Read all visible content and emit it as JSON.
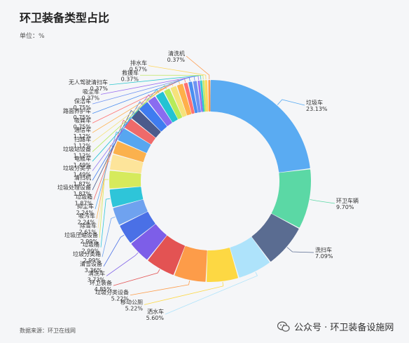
{
  "header": {
    "title": "环卫装备类型占比",
    "unit": "单位：%"
  },
  "footer": {
    "source": "数据来源：环卫在线网",
    "watermark": "公众号 · 环卫装备设施网"
  },
  "chart_data": {
    "type": "pie",
    "variant": "donut",
    "title": "环卫装备类型占比",
    "unit": "%",
    "legend": "none",
    "slices": [
      {
        "label": "垃圾车",
        "value": 23.13,
        "text": "23.13%",
        "color": "#5aabf2"
      },
      {
        "label": "环卫车辆",
        "value": 9.7,
        "text": "9.70%",
        "color": "#5bd8a5"
      },
      {
        "label": "洗扫车",
        "value": 7.09,
        "text": "7.09%",
        "color": "#5a6c91"
      },
      {
        "label": "洒水车",
        "value": 5.6,
        "text": "5.60%",
        "color": "#aee3fb"
      },
      {
        "label": "移动公厕",
        "value": 5.22,
        "text": "5.22%",
        "color": "#fdd843"
      },
      {
        "label": "垃圾分类设备",
        "value": 5.22,
        "text": "5.22%",
        "color": "#fd9c49"
      },
      {
        "label": "环卫装备",
        "value": 4.85,
        "text": "4.85%",
        "color": "#e35353"
      },
      {
        "label": "清洗车",
        "value": 3.73,
        "text": "3.73%",
        "color": "#7d5ee8"
      },
      {
        "label": "清雪设备",
        "value": 3.36,
        "text": "3.36%",
        "color": "#4a70e6"
      },
      {
        "label": "垃圾分类箱",
        "value": 2.99,
        "text": "2.99%",
        "color": "#6fa2ef"
      },
      {
        "label": "垃圾桶",
        "value": 2.99,
        "text": "2.99%",
        "color": "#2ec5d9"
      },
      {
        "label": "垃圾压缩设备",
        "value": 2.99,
        "text": "2.99%",
        "color": "#d6ea5c"
      },
      {
        "label": "除雪车",
        "value": 2.61,
        "text": "2.61%",
        "color": "#fde49a"
      },
      {
        "label": "吸污车",
        "value": 2.24,
        "text": "2.24%",
        "color": "#fbb14d"
      },
      {
        "label": "抑尘车",
        "value": 2.24,
        "text": "2.24%",
        "color": "#57a6f0"
      },
      {
        "label": "垃圾箱",
        "value": 1.87,
        "text": "1.87%",
        "color": "#ef6a6a"
      },
      {
        "label": "垃圾处理设备",
        "value": 1.87,
        "text": "1.87%",
        "color": "#4b5b8c"
      },
      {
        "label": "清扫机",
        "value": 1.87,
        "text": "1.87%",
        "color": "#3f7cf0"
      },
      {
        "label": "垃圾分类亭",
        "value": 1.49,
        "text": "1.49%",
        "color": "#8a6cf0"
      },
      {
        "label": "电瓶车",
        "value": 1.49,
        "text": "1.49%",
        "color": "#23c3d3"
      },
      {
        "label": "垃圾站设备",
        "value": 1.12,
        "text": "1.12%",
        "color": "#b6eb5a"
      },
      {
        "label": "扫路车",
        "value": 1.12,
        "text": "1.12%",
        "color": "#f6e27a"
      },
      {
        "label": "通信车",
        "value": 1.12,
        "text": "1.12%",
        "color": "#ffb04a"
      },
      {
        "label": "吸粪车",
        "value": 0.75,
        "text": "0.75%",
        "color": "#ff7171"
      },
      {
        "label": "路面养护车",
        "value": 0.75,
        "text": "0.75%",
        "color": "#4a8ef0"
      },
      {
        "label": "保洁车",
        "value": 0.75,
        "text": "0.75%",
        "color": "#6f93f2"
      },
      {
        "label": "吸尘车",
        "value": 0.37,
        "text": "0.37%",
        "color": "#9a6df0"
      },
      {
        "label": "无人驾驶清扫车",
        "value": 0.37,
        "text": "0.37%",
        "color": "#2fc7cf"
      },
      {
        "label": "救援车",
        "value": 0.37,
        "text": "0.37%",
        "color": "#c4e86a"
      },
      {
        "label": "排水车",
        "value": 0.57,
        "text": "0.57%",
        "color": "#ffd75e"
      },
      {
        "label": "清洗机",
        "value": 0.37,
        "text": "0.37%",
        "color": "#ff9a4a"
      }
    ]
  }
}
